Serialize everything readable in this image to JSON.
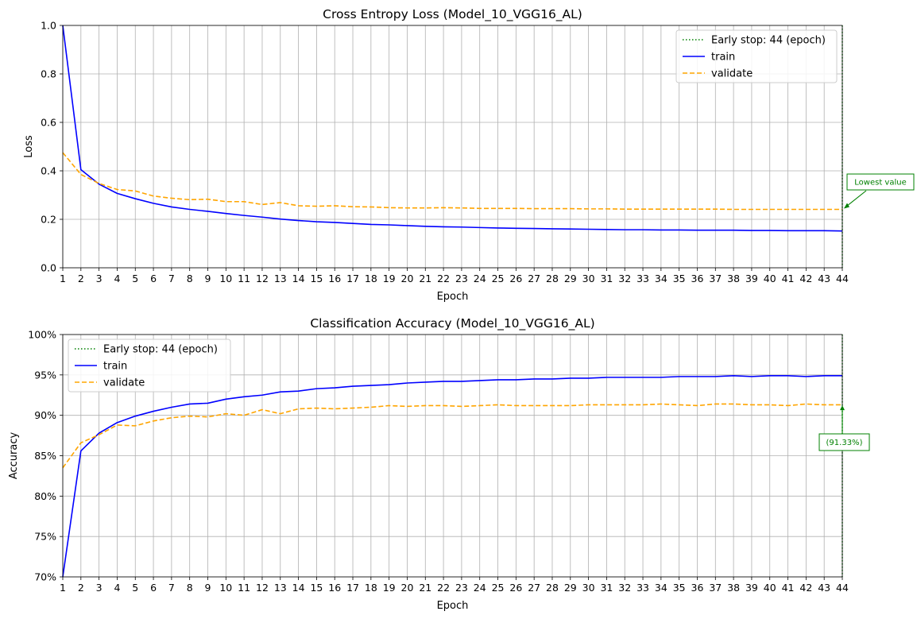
{
  "chart_data": [
    {
      "type": "line",
      "title": "Cross Entropy Loss (Model_10_VGG16_AL)",
      "xlabel": "Epoch",
      "ylabel": "Loss",
      "xlim": [
        1,
        44
      ],
      "ylim": [
        0,
        1.0
      ],
      "yticks": [
        0,
        0.2,
        0.4,
        0.6,
        0.8,
        1.0
      ],
      "ytick_labels": [
        "0.0",
        "0.2",
        "0.4",
        "0.6",
        "0.8",
        "1.0"
      ],
      "grid": true,
      "legend_position": "top-right",
      "x": [
        1,
        2,
        3,
        4,
        5,
        6,
        7,
        8,
        9,
        10,
        11,
        12,
        13,
        14,
        15,
        16,
        17,
        18,
        19,
        20,
        21,
        22,
        23,
        24,
        25,
        26,
        27,
        28,
        29,
        30,
        31,
        32,
        33,
        34,
        35,
        36,
        37,
        38,
        39,
        40,
        41,
        42,
        43,
        44
      ],
      "series": [
        {
          "name": "train",
          "style": "solid",
          "color": "#0000ff",
          "values": [
            1.0,
            0.405,
            0.345,
            0.307,
            0.285,
            0.266,
            0.251,
            0.241,
            0.233,
            0.224,
            0.216,
            0.209,
            0.201,
            0.195,
            0.19,
            0.187,
            0.183,
            0.179,
            0.177,
            0.174,
            0.171,
            0.169,
            0.168,
            0.166,
            0.164,
            0.163,
            0.162,
            0.161,
            0.16,
            0.159,
            0.158,
            0.157,
            0.157,
            0.156,
            0.156,
            0.155,
            0.155,
            0.155,
            0.154,
            0.154,
            0.153,
            0.153,
            0.153,
            0.152
          ]
        },
        {
          "name": "validate",
          "style": "dashed",
          "color": "#ffa500",
          "values": [
            0.475,
            0.385,
            0.348,
            0.323,
            0.317,
            0.296,
            0.287,
            0.281,
            0.283,
            0.273,
            0.273,
            0.261,
            0.269,
            0.256,
            0.254,
            0.256,
            0.252,
            0.251,
            0.248,
            0.247,
            0.247,
            0.248,
            0.247,
            0.245,
            0.245,
            0.245,
            0.244,
            0.244,
            0.244,
            0.243,
            0.243,
            0.242,
            0.242,
            0.242,
            0.242,
            0.242,
            0.242,
            0.241,
            0.241,
            0.241,
            0.241,
            0.241,
            0.241,
            0.241
          ]
        }
      ],
      "early_stop": {
        "label": "Early stop: 44 (epoch)",
        "epoch": 44,
        "color": "#008000"
      },
      "annotation": {
        "text": "Lowest value",
        "x": 44,
        "y": 0.241
      }
    },
    {
      "type": "line",
      "title": "Classification Accuracy (Model_10_VGG16_AL)",
      "xlabel": "Epoch",
      "ylabel": "Accuracy",
      "xlim": [
        1,
        44
      ],
      "ylim": [
        0.7,
        1.0
      ],
      "yticks": [
        0.7,
        0.75,
        0.8,
        0.85,
        0.9,
        0.95,
        1.0
      ],
      "ytick_labels": [
        "70%",
        "75%",
        "80%",
        "85%",
        "90%",
        "95%",
        "100%"
      ],
      "grid": true,
      "legend_position": "top-left",
      "x": [
        1,
        2,
        3,
        4,
        5,
        6,
        7,
        8,
        9,
        10,
        11,
        12,
        13,
        14,
        15,
        16,
        17,
        18,
        19,
        20,
        21,
        22,
        23,
        24,
        25,
        26,
        27,
        28,
        29,
        30,
        31,
        32,
        33,
        34,
        35,
        36,
        37,
        38,
        39,
        40,
        41,
        42,
        43,
        44
      ],
      "series": [
        {
          "name": "train",
          "style": "solid",
          "color": "#0000ff",
          "values": [
            0.695,
            0.856,
            0.878,
            0.891,
            0.899,
            0.905,
            0.91,
            0.914,
            0.915,
            0.92,
            0.923,
            0.925,
            0.929,
            0.93,
            0.933,
            0.934,
            0.936,
            0.937,
            0.938,
            0.94,
            0.941,
            0.942,
            0.942,
            0.943,
            0.944,
            0.944,
            0.945,
            0.945,
            0.946,
            0.946,
            0.947,
            0.947,
            0.947,
            0.947,
            0.948,
            0.948,
            0.948,
            0.949,
            0.948,
            0.949,
            0.949,
            0.948,
            0.949,
            0.949
          ]
        },
        {
          "name": "validate",
          "style": "dashed",
          "color": "#ffa500",
          "values": [
            0.835,
            0.866,
            0.876,
            0.888,
            0.887,
            0.893,
            0.897,
            0.899,
            0.898,
            0.902,
            0.9,
            0.907,
            0.902,
            0.908,
            0.909,
            0.908,
            0.909,
            0.91,
            0.912,
            0.911,
            0.912,
            0.912,
            0.911,
            0.912,
            0.913,
            0.912,
            0.912,
            0.912,
            0.912,
            0.913,
            0.913,
            0.913,
            0.913,
            0.914,
            0.913,
            0.912,
            0.914,
            0.914,
            0.913,
            0.913,
            0.912,
            0.914,
            0.913,
            0.913
          ]
        }
      ],
      "early_stop": {
        "label": "Early stop: 44 (epoch)",
        "epoch": 44,
        "color": "#008000"
      },
      "annotation": {
        "text": "(91.33%)",
        "x": 44,
        "y": 0.9133
      }
    }
  ]
}
